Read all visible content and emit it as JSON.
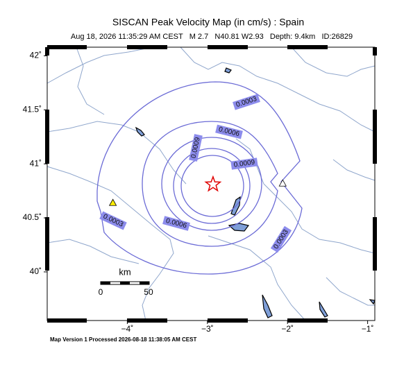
{
  "header": {
    "title": "SISCAN Peak Velocity Map (in cm/s) : Spain",
    "subtitle": "Aug 18, 2026 11:35:29 AM CEST   M 2.7   N40.81 W2.93   Depth: 9.4km   ID:26829"
  },
  "map": {
    "xlim": [
      -5.0,
      -0.91
    ],
    "ylim": [
      39.55,
      42.08
    ],
    "xticks": [
      {
        "value": -4,
        "label": "−4˚"
      },
      {
        "value": -3,
        "label": "−3˚"
      },
      {
        "value": -2,
        "label": "−2˚"
      },
      {
        "value": -1,
        "label": "−1˚"
      }
    ],
    "yticks": [
      {
        "value": 40,
        "label": "40˚"
      },
      {
        "value": 40.5,
        "label": "40.5˚"
      },
      {
        "value": 41,
        "label": "41˚"
      },
      {
        "value": 41.5,
        "label": "41.5˚"
      },
      {
        "value": 42,
        "label": "42˚"
      }
    ],
    "epicenter": {
      "lon": -2.93,
      "lat": 40.81
    },
    "stations": [
      {
        "lon": -4.18,
        "lat": 40.64,
        "color": "#ffee00"
      },
      {
        "lon": -2.06,
        "lat": 40.82,
        "color": "#ffffff"
      }
    ],
    "contour_labels": [
      "0.0003",
      "0.0006",
      "0.0009",
      "0.0009",
      "0.0003",
      "0.0006",
      "0.0003"
    ],
    "scale": {
      "unit": "km",
      "ticks": [
        0,
        50
      ]
    }
  },
  "footer": "Map Version 1 Processed 2026-08-18 11:38:05 AM CEST"
}
